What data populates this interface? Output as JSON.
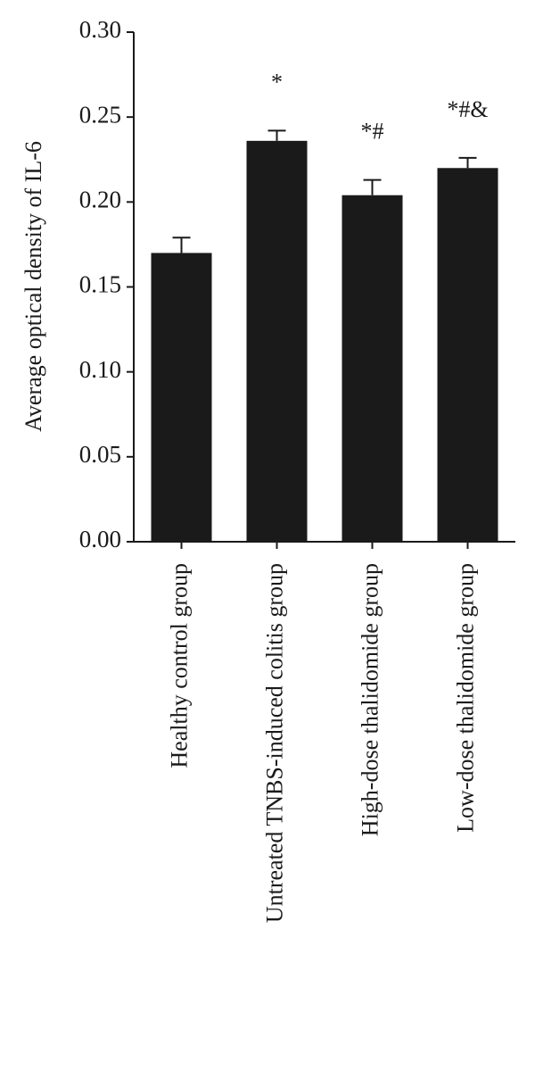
{
  "chart_data": {
    "type": "bar",
    "y_label": "Average optical density of IL-6",
    "categories": [
      "Healthy control group",
      "Untreated TNBS-induced colitis group",
      "High-dose thalidomide group",
      "Low-dose thalidomide group"
    ],
    "values": [
      0.17,
      0.236,
      0.204,
      0.22
    ],
    "errors": [
      0.009,
      0.006,
      0.009,
      0.006
    ],
    "annotations": [
      null,
      "*",
      "*#",
      "*#&"
    ],
    "color": "#1a1a1a",
    "ylim": [
      0,
      0.3
    ],
    "yticks": [
      {
        "value": 0,
        "label": "0.00"
      },
      {
        "value": 0.05,
        "label": "0.05"
      },
      {
        "value": 0.1,
        "label": "0.10"
      },
      {
        "value": 0.15,
        "label": "0.15"
      },
      {
        "value": 0.2,
        "label": "0.20"
      },
      {
        "value": 0.25,
        "label": "0.25"
      },
      {
        "value": 0.3,
        "label": "0.30"
      }
    ],
    "grid": false
  }
}
